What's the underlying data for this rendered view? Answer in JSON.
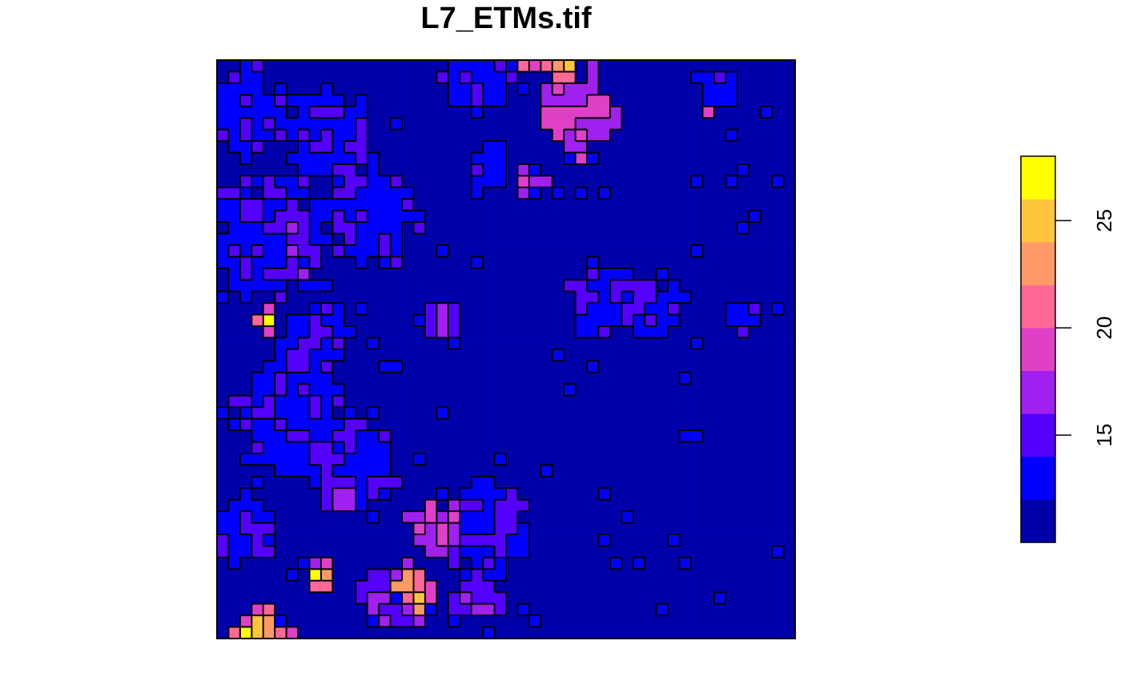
{
  "chart_data": {
    "type": "heatmap",
    "title": "L7_ETMs.tif",
    "grid": {
      "cols": 50,
      "rows": 50
    },
    "value_range": [
      10,
      28
    ],
    "legend": {
      "position": "right",
      "breaks": [
        10,
        12,
        14,
        16,
        18,
        20,
        22,
        24,
        26,
        28
      ],
      "colors": [
        "#0000AA",
        "#0000FF",
        "#5500FF",
        "#A020F0",
        "#E040C8",
        "#FF6896",
        "#FF9966",
        "#FFC43C",
        "#FFFF00"
      ],
      "ticks": [
        15,
        20,
        25
      ],
      "tick_labels": [
        "15",
        "20",
        "25"
      ]
    },
    "hot_spots": [
      {
        "col": 26,
        "row": 0,
        "value": 21
      },
      {
        "col": 27,
        "row": 0,
        "value": 20
      },
      {
        "col": 28,
        "row": 0,
        "value": 21
      },
      {
        "col": 29,
        "row": 0,
        "value": 23
      },
      {
        "col": 30,
        "row": 0,
        "value": 25
      },
      {
        "col": 29,
        "row": 1,
        "value": 21
      },
      {
        "col": 30,
        "row": 1,
        "value": 21
      },
      {
        "col": 28,
        "row": 4,
        "value": 20
      },
      {
        "col": 42,
        "row": 4,
        "value": 19
      },
      {
        "col": 4,
        "row": 21,
        "value": 20
      },
      {
        "col": 3,
        "row": 22,
        "value": 21
      },
      {
        "col": 4,
        "row": 22,
        "value": 28
      },
      {
        "col": 4,
        "row": 23,
        "value": 19
      },
      {
        "col": 8,
        "row": 43,
        "value": 18
      },
      {
        "col": 9,
        "row": 43,
        "value": 19
      },
      {
        "col": 8,
        "row": 44,
        "value": 28
      },
      {
        "col": 9,
        "row": 44,
        "value": 23
      },
      {
        "col": 8,
        "row": 45,
        "value": 22
      },
      {
        "col": 9,
        "row": 45,
        "value": 21
      },
      {
        "col": 16,
        "row": 44,
        "value": 23
      },
      {
        "col": 17,
        "row": 44,
        "value": 21
      },
      {
        "col": 15,
        "row": 45,
        "value": 23
      },
      {
        "col": 16,
        "row": 45,
        "value": 23
      },
      {
        "col": 17,
        "row": 45,
        "value": 22
      },
      {
        "col": 18,
        "row": 45,
        "value": 20
      },
      {
        "col": 16,
        "row": 46,
        "value": 21
      },
      {
        "col": 17,
        "row": 46,
        "value": 26
      },
      {
        "col": 18,
        "row": 46,
        "value": 19
      },
      {
        "col": 17,
        "row": 47,
        "value": 23
      },
      {
        "col": 3,
        "row": 47,
        "value": 20
      },
      {
        "col": 4,
        "row": 47,
        "value": 21
      },
      {
        "col": 2,
        "row": 48,
        "value": 19
      },
      {
        "col": 3,
        "row": 48,
        "value": 25
      },
      {
        "col": 4,
        "row": 48,
        "value": 23
      },
      {
        "col": 1,
        "row": 49,
        "value": 21
      },
      {
        "col": 2,
        "row": 49,
        "value": 28
      },
      {
        "col": 3,
        "row": 49,
        "value": 26
      },
      {
        "col": 4,
        "row": 49,
        "value": 24
      },
      {
        "col": 5,
        "row": 49,
        "value": 21
      },
      {
        "col": 6,
        "row": 49,
        "value": 19
      }
    ]
  }
}
